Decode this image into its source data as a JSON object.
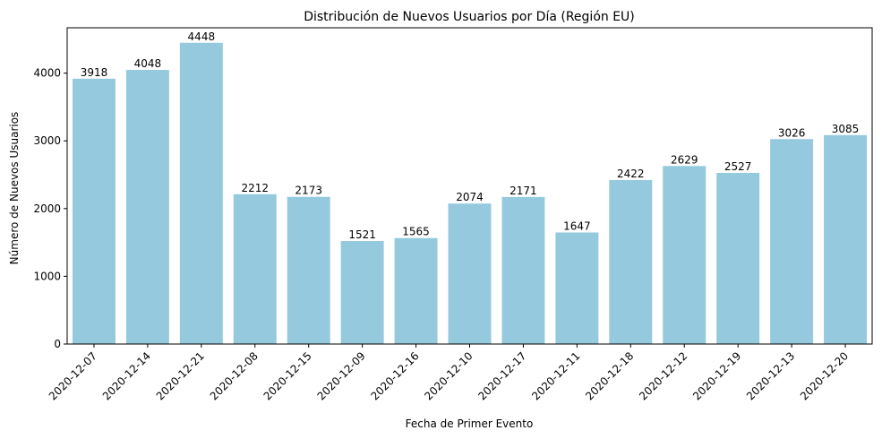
{
  "chart_data": {
    "type": "bar",
    "title": "Distribución de Nuevos Usuarios por Día (Región EU)",
    "xlabel": "Fecha de Primer Evento",
    "ylabel": "Número de Nuevos Usuarios",
    "categories": [
      "2020-12-07",
      "2020-12-14",
      "2020-12-21",
      "2020-12-08",
      "2020-12-15",
      "2020-12-09",
      "2020-12-16",
      "2020-12-10",
      "2020-12-17",
      "2020-12-11",
      "2020-12-18",
      "2020-12-12",
      "2020-12-19",
      "2020-12-13",
      "2020-12-20"
    ],
    "values": [
      3918,
      4048,
      4448,
      2212,
      2173,
      1521,
      1565,
      2074,
      2171,
      1647,
      2422,
      2629,
      2527,
      3026,
      3085
    ],
    "data_labels": [
      "3918",
      "4048",
      "4448",
      "2212",
      "2173",
      "1521",
      "1565",
      "2074",
      "2171",
      "1647",
      "2422",
      "2629",
      "2527",
      "3026",
      "3085"
    ],
    "ylim": [
      0,
      4670
    ],
    "yticks": [
      0,
      1000,
      2000,
      3000,
      4000
    ],
    "ytick_labels": [
      "0",
      "1000",
      "2000",
      "3000",
      "4000"
    ],
    "bar_color": "#95c9de",
    "grid": false,
    "legend": false
  }
}
